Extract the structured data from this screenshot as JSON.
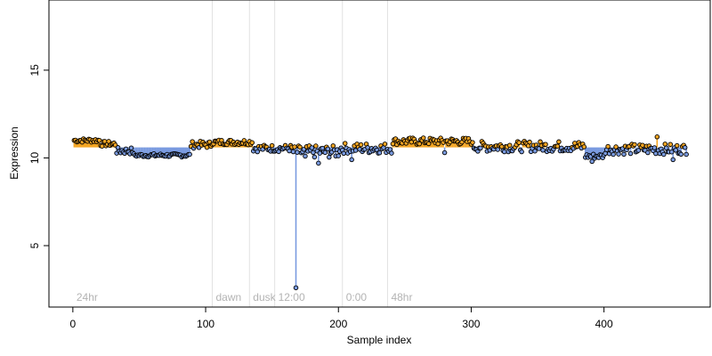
{
  "chart_data": {
    "type": "scatter",
    "title": "",
    "xlabel": "Sample index",
    "ylabel": "Expression",
    "xlim": [
      -18,
      480
    ],
    "ylim": [
      1.5,
      19
    ],
    "x_ticks": [
      0,
      100,
      200,
      300,
      400
    ],
    "y_ticks": [
      5,
      10,
      15
    ],
    "baseline": 10.6,
    "grid": false,
    "legend": "none",
    "colors": {
      "above_baseline": "#F5A623",
      "below_baseline": "#7A9BE0",
      "point_stroke": "#000000",
      "guide_line": "#e2e2e2",
      "annotation_text": "#b3b3b3"
    },
    "annotations": [
      {
        "label": "24hr",
        "x": 0
      },
      {
        "label": "dawn",
        "x": 105
      },
      {
        "label": "dusk",
        "x": 133
      },
      {
        "label": "12:00",
        "x": 152
      },
      {
        "label": "0:00",
        "x": 203
      },
      {
        "label": "48hr",
        "x": 237
      }
    ],
    "guide_lines_x": [
      105,
      133,
      152,
      203,
      237
    ],
    "segments": [
      {
        "from": 1,
        "to": 20,
        "mean": 11.0,
        "jitter": 0.12
      },
      {
        "from": 21,
        "to": 32,
        "mean": 10.8,
        "jitter": 0.15
      },
      {
        "from": 33,
        "to": 45,
        "mean": 10.4,
        "jitter": 0.2
      },
      {
        "from": 46,
        "to": 88,
        "mean": 10.15,
        "jitter": 0.1
      },
      {
        "from": 89,
        "to": 104,
        "mean": 10.75,
        "jitter": 0.2
      },
      {
        "from": 105,
        "to": 135,
        "mean": 10.9,
        "jitter": 0.15
      },
      {
        "from": 136,
        "to": 165,
        "mean": 10.55,
        "jitter": 0.2
      },
      {
        "from": 166,
        "to": 200,
        "mean": 10.35,
        "jitter": 0.35
      },
      {
        "from": 201,
        "to": 240,
        "mean": 10.55,
        "jitter": 0.3
      },
      {
        "from": 241,
        "to": 300,
        "mean": 10.95,
        "jitter": 0.2
      },
      {
        "from": 301,
        "to": 385,
        "mean": 10.65,
        "jitter": 0.3
      },
      {
        "from": 386,
        "to": 400,
        "mean": 10.1,
        "jitter": 0.15
      },
      {
        "from": 401,
        "to": 462,
        "mean": 10.5,
        "jitter": 0.3
      }
    ],
    "points": [
      {
        "x": 168,
        "y": 2.6
      },
      {
        "x": 175,
        "y": 10.1
      },
      {
        "x": 185,
        "y": 9.7
      },
      {
        "x": 210,
        "y": 9.9
      },
      {
        "x": 280,
        "y": 10.3
      },
      {
        "x": 391,
        "y": 9.8
      },
      {
        "x": 440,
        "y": 11.2
      },
      {
        "x": 452,
        "y": 9.9
      }
    ]
  }
}
